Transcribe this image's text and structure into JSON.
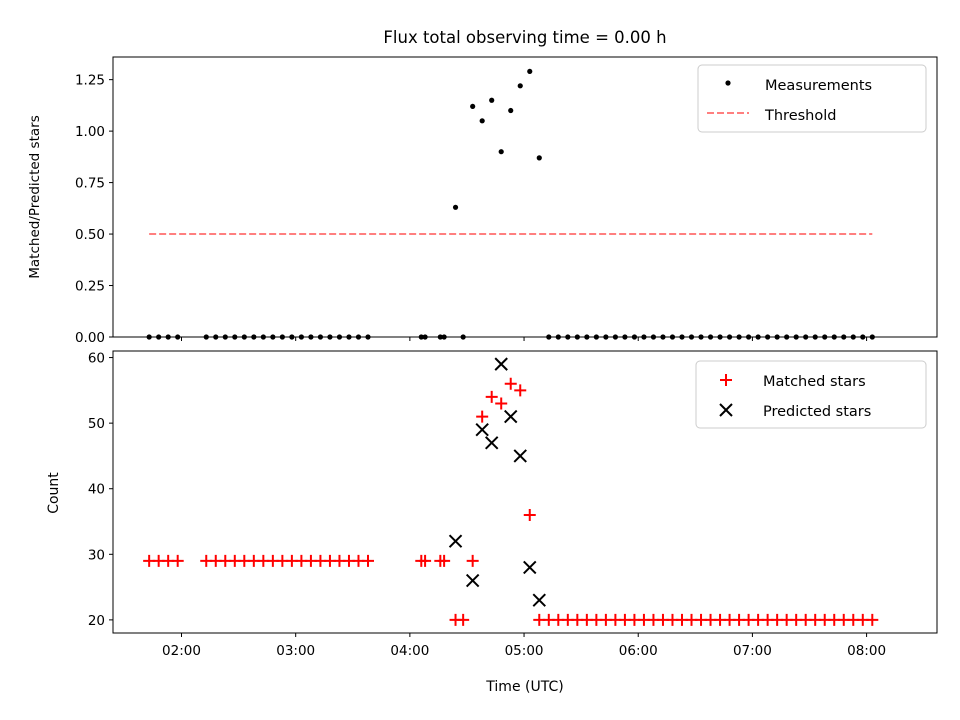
{
  "chart_data": [
    {
      "type": "scatter",
      "title": "Flux total observing time = 0.00 h",
      "xlabel": "",
      "ylabel": "Matched/Predicted stars",
      "ylim": [
        0,
        1.36
      ],
      "yticks": [
        0.0,
        0.25,
        0.5,
        0.75,
        1.0,
        1.25
      ],
      "ytick_labels": [
        "0.00",
        "0.25",
        "0.50",
        "0.75",
        "1.00",
        "1.25"
      ],
      "legend_position": "top-right",
      "legend": [
        "Measurements",
        "Threshold"
      ],
      "series": [
        {
          "name": "Measurements",
          "color": "#000000",
          "marker": "dot",
          "points": [
            [
              "01:43",
              0
            ],
            [
              "01:48",
              0
            ],
            [
              "01:53",
              0
            ],
            [
              "01:58",
              0
            ],
            [
              "02:13",
              0
            ],
            [
              "02:18",
              0
            ],
            [
              "02:23",
              0
            ],
            [
              "02:28",
              0
            ],
            [
              "02:33",
              0
            ],
            [
              "02:38",
              0
            ],
            [
              "02:43",
              0
            ],
            [
              "02:48",
              0
            ],
            [
              "02:53",
              0
            ],
            [
              "02:58",
              0
            ],
            [
              "03:03",
              0
            ],
            [
              "03:08",
              0
            ],
            [
              "03:13",
              0
            ],
            [
              "03:18",
              0
            ],
            [
              "03:23",
              0
            ],
            [
              "03:28",
              0
            ],
            [
              "03:33",
              0
            ],
            [
              "03:38",
              0
            ],
            [
              "04:06",
              0
            ],
            [
              "04:08",
              0
            ],
            [
              "04:16",
              0
            ],
            [
              "04:18",
              0
            ],
            [
              "04:28",
              0
            ],
            [
              "04:24",
              0.63
            ],
            [
              "04:33",
              1.12
            ],
            [
              "04:38",
              1.05
            ],
            [
              "04:43",
              1.15
            ],
            [
              "04:48",
              0.9
            ],
            [
              "04:53",
              1.1
            ],
            [
              "04:58",
              1.22
            ],
            [
              "05:03",
              1.29
            ],
            [
              "05:08",
              0.87
            ],
            [
              "05:13",
              0
            ],
            [
              "05:18",
              0
            ],
            [
              "05:23",
              0
            ],
            [
              "05:28",
              0
            ],
            [
              "05:33",
              0
            ],
            [
              "05:38",
              0
            ],
            [
              "05:43",
              0
            ],
            [
              "05:48",
              0
            ],
            [
              "05:53",
              0
            ],
            [
              "05:58",
              0
            ],
            [
              "06:03",
              0
            ],
            [
              "06:08",
              0
            ],
            [
              "06:13",
              0
            ],
            [
              "06:18",
              0
            ],
            [
              "06:23",
              0
            ],
            [
              "06:28",
              0
            ],
            [
              "06:33",
              0
            ],
            [
              "06:38",
              0
            ],
            [
              "06:43",
              0
            ],
            [
              "06:48",
              0
            ],
            [
              "06:53",
              0
            ],
            [
              "06:58",
              0
            ],
            [
              "07:03",
              0
            ],
            [
              "07:08",
              0
            ],
            [
              "07:13",
              0
            ],
            [
              "07:18",
              0
            ],
            [
              "07:23",
              0
            ],
            [
              "07:28",
              0
            ],
            [
              "07:33",
              0
            ],
            [
              "07:38",
              0
            ],
            [
              "07:43",
              0
            ],
            [
              "07:48",
              0
            ],
            [
              "07:53",
              0
            ],
            [
              "07:58",
              0
            ],
            [
              "08:03",
              0
            ]
          ]
        },
        {
          "name": "Threshold",
          "color": "#ff7f7f",
          "style": "dashed",
          "points": [
            [
              "01:43",
              0.5
            ],
            [
              "08:03",
              0.5
            ]
          ]
        }
      ]
    },
    {
      "type": "scatter",
      "title": "",
      "xlabel": "Time (UTC)",
      "ylabel": "Count",
      "xlim": [
        "01:24",
        "08:37"
      ],
      "ylim": [
        18,
        61
      ],
      "yticks": [
        20,
        30,
        40,
        50,
        60
      ],
      "ytick_labels": [
        "20",
        "30",
        "40",
        "50",
        "60"
      ],
      "xticks": [
        "02:00",
        "03:00",
        "04:00",
        "05:00",
        "06:00",
        "07:00",
        "08:00"
      ],
      "legend_position": "top-right",
      "legend": [
        "Matched stars",
        "Predicted stars"
      ],
      "series": [
        {
          "name": "Matched stars",
          "color": "#ff0000",
          "marker": "plus",
          "points": [
            [
              "01:43",
              29
            ],
            [
              "01:48",
              29
            ],
            [
              "01:53",
              29
            ],
            [
              "01:58",
              29
            ],
            [
              "02:13",
              29
            ],
            [
              "02:18",
              29
            ],
            [
              "02:23",
              29
            ],
            [
              "02:28",
              29
            ],
            [
              "02:33",
              29
            ],
            [
              "02:38",
              29
            ],
            [
              "02:43",
              29
            ],
            [
              "02:48",
              29
            ],
            [
              "02:53",
              29
            ],
            [
              "02:58",
              29
            ],
            [
              "03:03",
              29
            ],
            [
              "03:08",
              29
            ],
            [
              "03:13",
              29
            ],
            [
              "03:18",
              29
            ],
            [
              "03:23",
              29
            ],
            [
              "03:28",
              29
            ],
            [
              "03:33",
              29
            ],
            [
              "03:38",
              29
            ],
            [
              "04:06",
              29
            ],
            [
              "04:08",
              29
            ],
            [
              "04:16",
              29
            ],
            [
              "04:18",
              29
            ],
            [
              "04:24",
              20
            ],
            [
              "04:28",
              20
            ],
            [
              "04:33",
              29
            ],
            [
              "04:38",
              51
            ],
            [
              "04:43",
              54
            ],
            [
              "04:48",
              53
            ],
            [
              "04:53",
              56
            ],
            [
              "04:58",
              55
            ],
            [
              "05:03",
              36
            ],
            [
              "05:08",
              20
            ],
            [
              "05:13",
              20
            ],
            [
              "05:18",
              20
            ],
            [
              "05:23",
              20
            ],
            [
              "05:28",
              20
            ],
            [
              "05:33",
              20
            ],
            [
              "05:38",
              20
            ],
            [
              "05:43",
              20
            ],
            [
              "05:48",
              20
            ],
            [
              "05:53",
              20
            ],
            [
              "05:58",
              20
            ],
            [
              "06:03",
              20
            ],
            [
              "06:08",
              20
            ],
            [
              "06:13",
              20
            ],
            [
              "06:18",
              20
            ],
            [
              "06:23",
              20
            ],
            [
              "06:28",
              20
            ],
            [
              "06:33",
              20
            ],
            [
              "06:38",
              20
            ],
            [
              "06:43",
              20
            ],
            [
              "06:48",
              20
            ],
            [
              "06:53",
              20
            ],
            [
              "06:58",
              20
            ],
            [
              "07:03",
              20
            ],
            [
              "07:08",
              20
            ],
            [
              "07:13",
              20
            ],
            [
              "07:18",
              20
            ],
            [
              "07:23",
              20
            ],
            [
              "07:28",
              20
            ],
            [
              "07:33",
              20
            ],
            [
              "07:38",
              20
            ],
            [
              "07:43",
              20
            ],
            [
              "07:48",
              20
            ],
            [
              "07:53",
              20
            ],
            [
              "07:58",
              20
            ],
            [
              "08:03",
              20
            ]
          ]
        },
        {
          "name": "Predicted stars",
          "color": "#000000",
          "marker": "x",
          "points": [
            [
              "04:24",
              32
            ],
            [
              "04:33",
              26
            ],
            [
              "04:38",
              49
            ],
            [
              "04:43",
              47
            ],
            [
              "04:48",
              59
            ],
            [
              "04:53",
              51
            ],
            [
              "04:58",
              45
            ],
            [
              "05:03",
              28
            ],
            [
              "05:08",
              23
            ]
          ]
        }
      ]
    }
  ]
}
